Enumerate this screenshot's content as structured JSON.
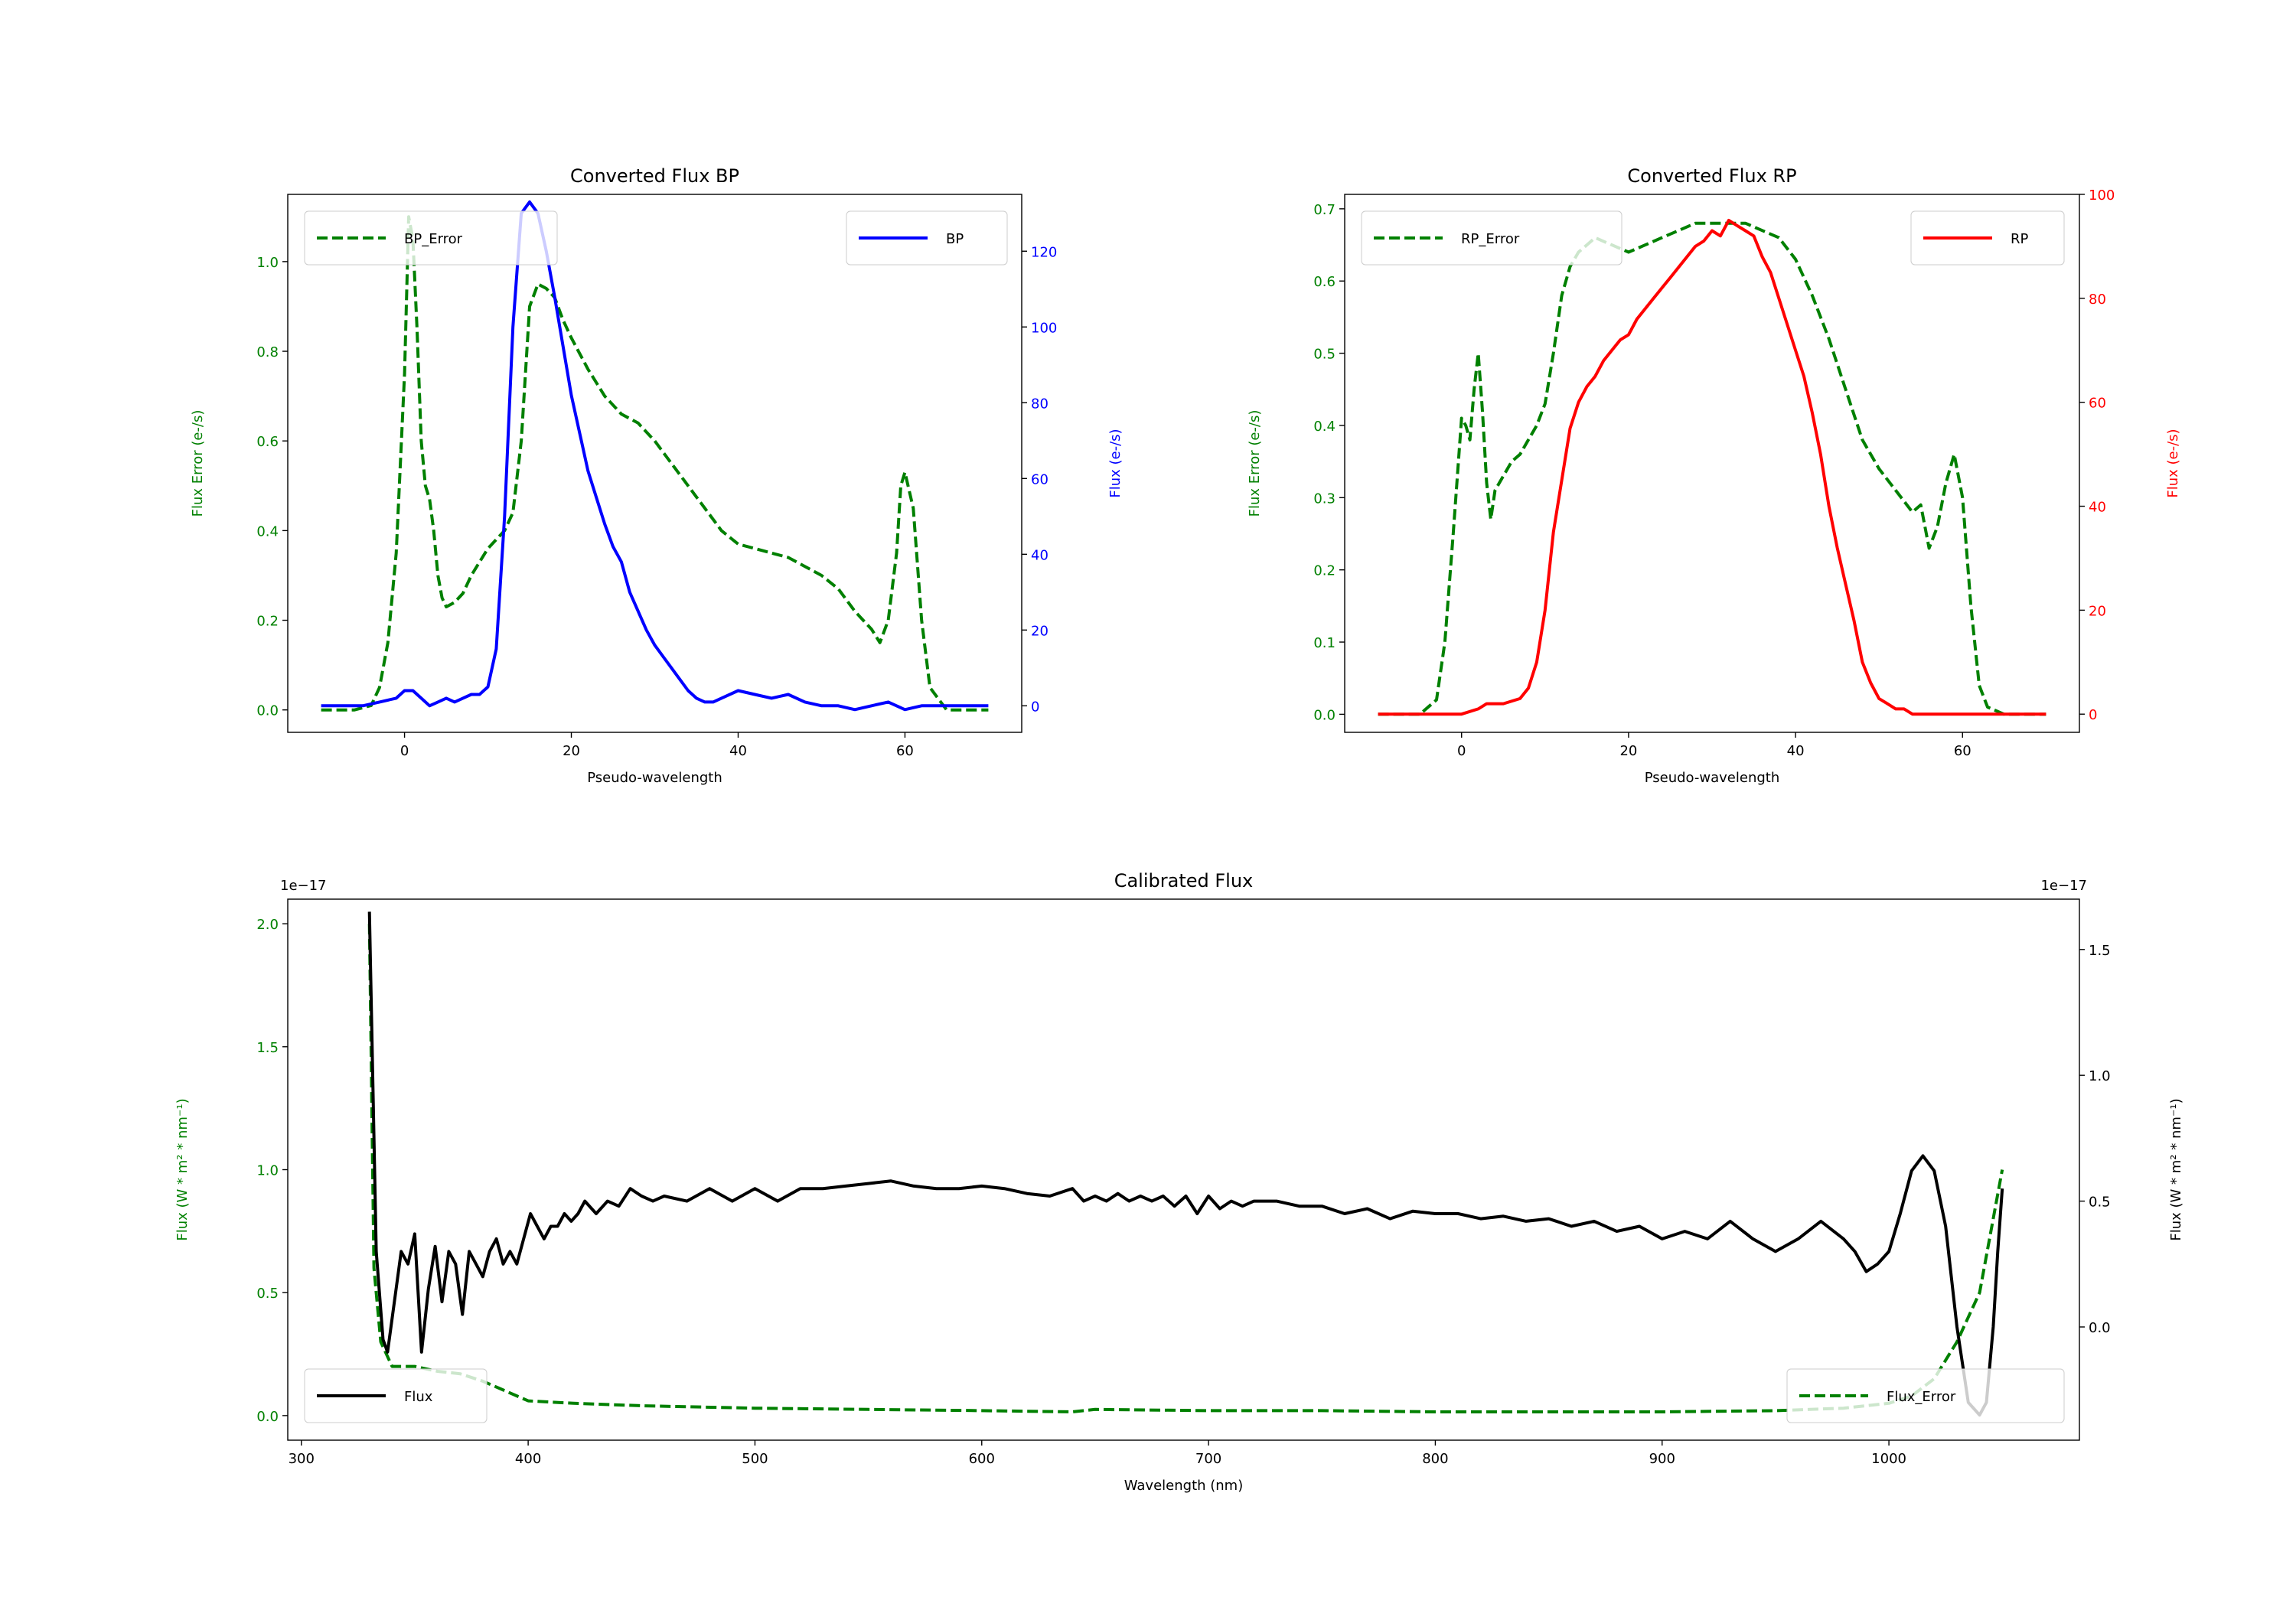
{
  "colors": {
    "error": "#008000",
    "bp": "#0000ff",
    "rp": "#ff0000",
    "flux": "#000000"
  },
  "chart_data": [
    {
      "type": "line",
      "title": "Converted Flux BP",
      "xlabel": "Pseudo-wavelength",
      "ylabel_left": "Flux Error (e-/s)",
      "ylabel_right": "Flux (e-/s)",
      "xlim": [
        -14,
        74
      ],
      "ylim_left": [
        -0.05,
        1.15
      ],
      "ylim_right": [
        -7,
        135
      ],
      "xticks": [
        "0",
        "20",
        "40",
        "60"
      ],
      "yticks_left": [
        "0.0",
        "0.2",
        "0.4",
        "0.6",
        "0.8",
        "1.0"
      ],
      "yticks_right": [
        "0",
        "20",
        "40",
        "60",
        "80",
        "100",
        "120"
      ],
      "legend_left": "BP_Error",
      "legend_right": "BP",
      "series": [
        {
          "name": "BP_Error",
          "axis": "left",
          "style": "dashed",
          "color": "#008000",
          "x": [
            -10,
            -6,
            -4,
            -3,
            -2,
            -1,
            0,
            0.5,
            1,
            1.5,
            2,
            2.5,
            3,
            3.5,
            4,
            4.5,
            5,
            6,
            7,
            8,
            9,
            10,
            11,
            12,
            13,
            14,
            15,
            16,
            17,
            18,
            19,
            20,
            22,
            24,
            26,
            28,
            30,
            32,
            34,
            36,
            38,
            40,
            42,
            44,
            46,
            48,
            50,
            52,
            54,
            56,
            57,
            58,
            59,
            59.5,
            60,
            61,
            62,
            63,
            65,
            70
          ],
          "y": [
            0.0,
            0.0,
            0.01,
            0.05,
            0.15,
            0.35,
            0.75,
            1.1,
            1.05,
            0.85,
            0.6,
            0.5,
            0.47,
            0.4,
            0.3,
            0.25,
            0.23,
            0.24,
            0.26,
            0.3,
            0.33,
            0.36,
            0.38,
            0.4,
            0.44,
            0.6,
            0.9,
            0.95,
            0.94,
            0.92,
            0.87,
            0.83,
            0.76,
            0.7,
            0.66,
            0.64,
            0.6,
            0.55,
            0.5,
            0.45,
            0.4,
            0.37,
            0.36,
            0.35,
            0.34,
            0.32,
            0.3,
            0.27,
            0.22,
            0.18,
            0.15,
            0.2,
            0.35,
            0.5,
            0.53,
            0.45,
            0.2,
            0.05,
            0.0,
            0.0
          ]
        },
        {
          "name": "BP",
          "axis": "right",
          "style": "solid",
          "color": "#0000ff",
          "x": [
            -10,
            -5,
            -3,
            -1,
            0,
            1,
            2,
            3,
            4,
            5,
            6,
            7,
            8,
            9,
            10,
            11,
            12,
            13,
            14,
            15,
            16,
            17,
            18,
            19,
            20,
            21,
            22,
            23,
            24,
            25,
            26,
            27,
            28,
            29,
            30,
            31,
            32,
            33,
            34,
            35,
            36,
            37,
            38,
            40,
            42,
            44,
            46,
            48,
            50,
            52,
            54,
            56,
            58,
            60,
            62,
            64,
            66,
            70
          ],
          "y": [
            0,
            0,
            1,
            2,
            4,
            4,
            2,
            0,
            1,
            2,
            1,
            2,
            3,
            3,
            5,
            15,
            50,
            100,
            130,
            133,
            130,
            120,
            108,
            95,
            82,
            72,
            62,
            55,
            48,
            42,
            38,
            30,
            25,
            20,
            16,
            13,
            10,
            7,
            4,
            2,
            1,
            1,
            2,
            4,
            3,
            2,
            3,
            1,
            0,
            0,
            -1,
            0,
            1,
            -1,
            0,
            0,
            0,
            0
          ]
        }
      ]
    },
    {
      "type": "line",
      "title": "Converted Flux RP",
      "xlabel": "Pseudo-wavelength",
      "ylabel_left": "Flux Error (e-/s)",
      "ylabel_right": "Flux (e-/s)",
      "xlim": [
        -14,
        74
      ],
      "ylim_left": [
        -0.025,
        0.72
      ],
      "ylim_right": [
        -3.5,
        100
      ],
      "xticks": [
        "0",
        "20",
        "40",
        "60"
      ],
      "yticks_left": [
        "0.0",
        "0.1",
        "0.2",
        "0.3",
        "0.4",
        "0.5",
        "0.6",
        "0.7"
      ],
      "yticks_right": [
        "0",
        "20",
        "40",
        "60",
        "80",
        "100"
      ],
      "legend_left": "RP_Error",
      "legend_right": "RP",
      "series": [
        {
          "name": "RP_Error",
          "axis": "left",
          "style": "dashed",
          "color": "#008000",
          "x": [
            -10,
            -5,
            -3,
            -2,
            -1,
            0,
            0.5,
            1,
            1.5,
            2,
            2.5,
            3,
            3.5,
            4,
            5,
            6,
            7,
            8,
            9,
            10,
            11,
            12,
            13,
            14,
            15,
            16,
            18,
            20,
            22,
            24,
            26,
            28,
            30,
            32,
            34,
            36,
            38,
            40,
            42,
            44,
            46,
            48,
            50,
            52,
            54,
            55,
            56,
            57,
            58,
            59,
            60,
            61,
            62,
            63,
            65,
            70
          ],
          "y": [
            0.0,
            0.0,
            0.02,
            0.1,
            0.25,
            0.41,
            0.4,
            0.38,
            0.45,
            0.5,
            0.42,
            0.32,
            0.27,
            0.31,
            0.33,
            0.35,
            0.36,
            0.38,
            0.4,
            0.43,
            0.5,
            0.58,
            0.62,
            0.64,
            0.65,
            0.66,
            0.65,
            0.64,
            0.65,
            0.66,
            0.67,
            0.68,
            0.68,
            0.68,
            0.68,
            0.67,
            0.66,
            0.63,
            0.58,
            0.52,
            0.45,
            0.38,
            0.34,
            0.31,
            0.28,
            0.29,
            0.23,
            0.26,
            0.32,
            0.36,
            0.3,
            0.15,
            0.04,
            0.01,
            0.0,
            0.0
          ]
        },
        {
          "name": "RP",
          "axis": "right",
          "style": "solid",
          "color": "#ff0000",
          "x": [
            -10,
            0,
            2,
            3,
            5,
            7,
            8,
            9,
            10,
            11,
            12,
            13,
            14,
            15,
            16,
            17,
            18,
            19,
            20,
            21,
            22,
            23,
            24,
            25,
            26,
            27,
            28,
            29,
            30,
            31,
            32,
            33,
            34,
            35,
            36,
            37,
            38,
            39,
            40,
            41,
            42,
            43,
            44,
            45,
            46,
            47,
            48,
            49,
            50,
            51,
            52,
            53,
            54,
            56,
            60,
            70
          ],
          "y": [
            0,
            0,
            1,
            2,
            2,
            3,
            5,
            10,
            20,
            35,
            45,
            55,
            60,
            63,
            65,
            68,
            70,
            72,
            73,
            76,
            78,
            80,
            82,
            84,
            86,
            88,
            90,
            91,
            93,
            92,
            95,
            94,
            93,
            92,
            88,
            85,
            80,
            75,
            70,
            65,
            58,
            50,
            40,
            32,
            25,
            18,
            10,
            6,
            3,
            2,
            1,
            1,
            0,
            0,
            0,
            0
          ]
        }
      ]
    },
    {
      "type": "line",
      "title": "Calibrated Flux",
      "xlabel": "Wavelength (nm)",
      "ylabel_left": "Flux (W * m² * nm⁻¹)",
      "ylabel_right": "Flux (W * m² * nm⁻¹)",
      "offset_left": "1e−17",
      "offset_right": "1e−17",
      "xlim": [
        294,
        1084
      ],
      "ylim_left": [
        -0.1,
        2.1
      ],
      "ylim_right": [
        -0.45,
        1.7
      ],
      "xticks": [
        "300",
        "400",
        "500",
        "600",
        "700",
        "800",
        "900",
        "1000"
      ],
      "yticks_left": [
        "0.0",
        "0.5",
        "1.0",
        "1.5",
        "2.0"
      ],
      "yticks_right": [
        "0.0",
        "0.5",
        "1.0",
        "1.5"
      ],
      "legend_left": "Flux",
      "legend_right": "Flux_Error",
      "series": [
        {
          "name": "Flux_Error",
          "axis": "left",
          "style": "dashed",
          "color": "#008000",
          "x": [
            330,
            332,
            335,
            340,
            350,
            360,
            370,
            380,
            390,
            400,
            420,
            450,
            500,
            550,
            600,
            640,
            650,
            700,
            750,
            800,
            850,
            900,
            950,
            980,
            1000,
            1010,
            1020,
            1030,
            1040,
            1045,
            1050
          ],
          "y": [
            2.0,
            0.6,
            0.3,
            0.2,
            0.2,
            0.18,
            0.17,
            0.14,
            0.1,
            0.06,
            0.05,
            0.04,
            0.03,
            0.025,
            0.02,
            0.015,
            0.025,
            0.02,
            0.02,
            0.015,
            0.015,
            0.015,
            0.02,
            0.03,
            0.05,
            0.08,
            0.15,
            0.3,
            0.5,
            0.75,
            1.0
          ]
        },
        {
          "name": "Flux",
          "axis": "right",
          "style": "solid",
          "color": "#000000",
          "x": [
            330,
            333,
            336,
            338,
            341,
            344,
            347,
            350,
            353,
            356,
            359,
            362,
            365,
            368,
            371,
            374,
            377,
            380,
            383,
            386,
            389,
            392,
            395,
            398,
            401,
            404,
            407,
            410,
            413,
            416,
            419,
            422,
            425,
            430,
            435,
            440,
            445,
            450,
            455,
            460,
            470,
            480,
            490,
            500,
            510,
            520,
            530,
            540,
            550,
            560,
            570,
            580,
            590,
            600,
            610,
            620,
            630,
            640,
            645,
            650,
            655,
            660,
            665,
            670,
            675,
            680,
            685,
            690,
            695,
            700,
            705,
            710,
            715,
            720,
            730,
            740,
            750,
            760,
            770,
            780,
            790,
            800,
            810,
            820,
            830,
            840,
            850,
            860,
            870,
            880,
            890,
            900,
            910,
            920,
            930,
            940,
            950,
            960,
            970,
            980,
            985,
            990,
            995,
            1000,
            1005,
            1010,
            1015,
            1020,
            1025,
            1030,
            1035,
            1040,
            1043,
            1046,
            1048,
            1050
          ],
          "y": [
            1.65,
            0.3,
            -0.05,
            -0.1,
            0.1,
            0.3,
            0.25,
            0.37,
            -0.1,
            0.15,
            0.32,
            0.1,
            0.3,
            0.25,
            0.05,
            0.3,
            0.25,
            0.2,
            0.3,
            0.35,
            0.25,
            0.3,
            0.25,
            0.35,
            0.45,
            0.4,
            0.35,
            0.4,
            0.4,
            0.45,
            0.42,
            0.45,
            0.5,
            0.45,
            0.5,
            0.48,
            0.55,
            0.52,
            0.5,
            0.52,
            0.5,
            0.55,
            0.5,
            0.55,
            0.5,
            0.55,
            0.55,
            0.56,
            0.57,
            0.58,
            0.56,
            0.55,
            0.55,
            0.56,
            0.55,
            0.53,
            0.52,
            0.55,
            0.5,
            0.52,
            0.5,
            0.53,
            0.5,
            0.52,
            0.5,
            0.52,
            0.48,
            0.52,
            0.45,
            0.52,
            0.47,
            0.5,
            0.48,
            0.5,
            0.5,
            0.48,
            0.48,
            0.45,
            0.47,
            0.43,
            0.46,
            0.45,
            0.45,
            0.43,
            0.44,
            0.42,
            0.43,
            0.4,
            0.42,
            0.38,
            0.4,
            0.35,
            0.38,
            0.35,
            0.42,
            0.35,
            0.3,
            0.35,
            0.42,
            0.35,
            0.3,
            0.22,
            0.25,
            0.3,
            0.45,
            0.62,
            0.68,
            0.62,
            0.4,
            0.0,
            -0.3,
            -0.35,
            -0.3,
            0.0,
            0.3,
            0.55
          ]
        }
      ]
    }
  ]
}
